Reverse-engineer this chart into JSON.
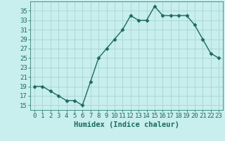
{
  "x": [
    0,
    1,
    2,
    3,
    4,
    5,
    6,
    7,
    8,
    9,
    10,
    11,
    12,
    13,
    14,
    15,
    16,
    17,
    18,
    19,
    20,
    21,
    22,
    23
  ],
  "y": [
    19,
    19,
    18,
    17,
    16,
    16,
    15,
    20,
    25,
    27,
    29,
    31,
    34,
    33,
    33,
    36,
    34,
    34,
    34,
    34,
    32,
    29,
    26,
    25
  ],
  "line_color": "#1a6b5e",
  "bg_color": "#c8eeee",
  "grid_color": "#aad4d4",
  "xlabel": "Humidex (Indice chaleur)",
  "ylim": [
    14,
    37
  ],
  "yticks": [
    15,
    17,
    19,
    21,
    23,
    25,
    27,
    29,
    31,
    33,
    35
  ],
  "xticks": [
    0,
    1,
    2,
    3,
    4,
    5,
    6,
    7,
    8,
    9,
    10,
    11,
    12,
    13,
    14,
    15,
    16,
    17,
    18,
    19,
    20,
    21,
    22,
    23
  ],
  "marker": "D",
  "markersize": 2.5,
  "linewidth": 1.0,
  "tick_fontsize": 6.5,
  "xlabel_fontsize": 7.5
}
